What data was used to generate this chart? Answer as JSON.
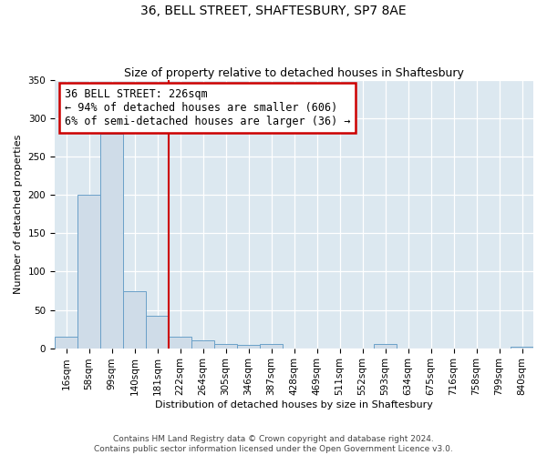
{
  "title": "36, BELL STREET, SHAFTESBURY, SP7 8AE",
  "subtitle": "Size of property relative to detached houses in Shaftesbury",
  "xlabel": "Distribution of detached houses by size in Shaftesbury",
  "ylabel": "Number of detached properties",
  "bin_labels": [
    "16sqm",
    "58sqm",
    "99sqm",
    "140sqm",
    "181sqm",
    "222sqm",
    "264sqm",
    "305sqm",
    "346sqm",
    "387sqm",
    "428sqm",
    "469sqm",
    "511sqm",
    "552sqm",
    "593sqm",
    "634sqm",
    "675sqm",
    "716sqm",
    "758sqm",
    "799sqm",
    "840sqm"
  ],
  "bar_values": [
    15,
    200,
    280,
    75,
    42,
    15,
    10,
    5,
    4,
    6,
    0,
    0,
    0,
    0,
    5,
    0,
    0,
    0,
    0,
    0,
    2
  ],
  "bar_color": "#cfdce8",
  "bar_edge_color": "#6aa0c8",
  "annotation_box_text": "36 BELL STREET: 226sqm\n← 94% of detached houses are smaller (606)\n6% of semi-detached houses are larger (36) →",
  "annotation_box_color": "#ffffff",
  "annotation_box_edge_color": "#cc0000",
  "annotation_line_color": "#cc0000",
  "ylim": [
    0,
    350
  ],
  "yticks": [
    0,
    50,
    100,
    150,
    200,
    250,
    300,
    350
  ],
  "footer_line1": "Contains HM Land Registry data © Crown copyright and database right 2024.",
  "footer_line2": "Contains public sector information licensed under the Open Government Licence v3.0.",
  "bg_color": "#dce8f0",
  "title_fontsize": 10,
  "subtitle_fontsize": 9,
  "axis_label_fontsize": 8,
  "tick_fontsize": 7.5,
  "annotation_fontsize": 8.5,
  "footer_fontsize": 6.5
}
